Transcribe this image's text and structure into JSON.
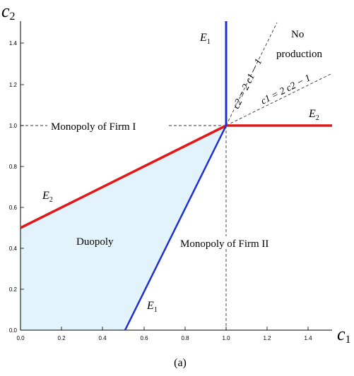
{
  "axes": {
    "x_label": "c",
    "x_label_sub": "1",
    "y_label": "c",
    "y_label_sub": "2",
    "x_ticks": [
      "0.0",
      "0.2",
      "0.4",
      "0.6",
      "0.8",
      "1.0",
      "1.2",
      "1.4"
    ],
    "y_ticks": [
      "0.0",
      "0.2",
      "0.4",
      "0.6",
      "0.8",
      "1.0",
      "1.2",
      "1.4"
    ]
  },
  "regions": {
    "duopoly": "Duopoly",
    "monopoly_firm_1": "Monopoly of Firm I",
    "monopoly_firm_2": "Monopoly of Firm II",
    "no_production_line1": "No",
    "no_production_line2": "production"
  },
  "curves": {
    "e1_top": {
      "letter": "E",
      "sub": "1"
    },
    "e1_bottom": {
      "letter": "E",
      "sub": "1"
    },
    "e2_left": {
      "letter": "E",
      "sub": "2"
    },
    "e2_right": {
      "letter": "E",
      "sub": "2"
    }
  },
  "diagonals": {
    "upper": "c2 = 2 c1 − 1",
    "lower": "c1 = 2 c2 − 1"
  },
  "caption": "(a)",
  "colors": {
    "e1": "#1f2fd0",
    "e2": "#e01818",
    "duopoly_fill": "#e3f3fb",
    "dashed": "#333333"
  }
}
